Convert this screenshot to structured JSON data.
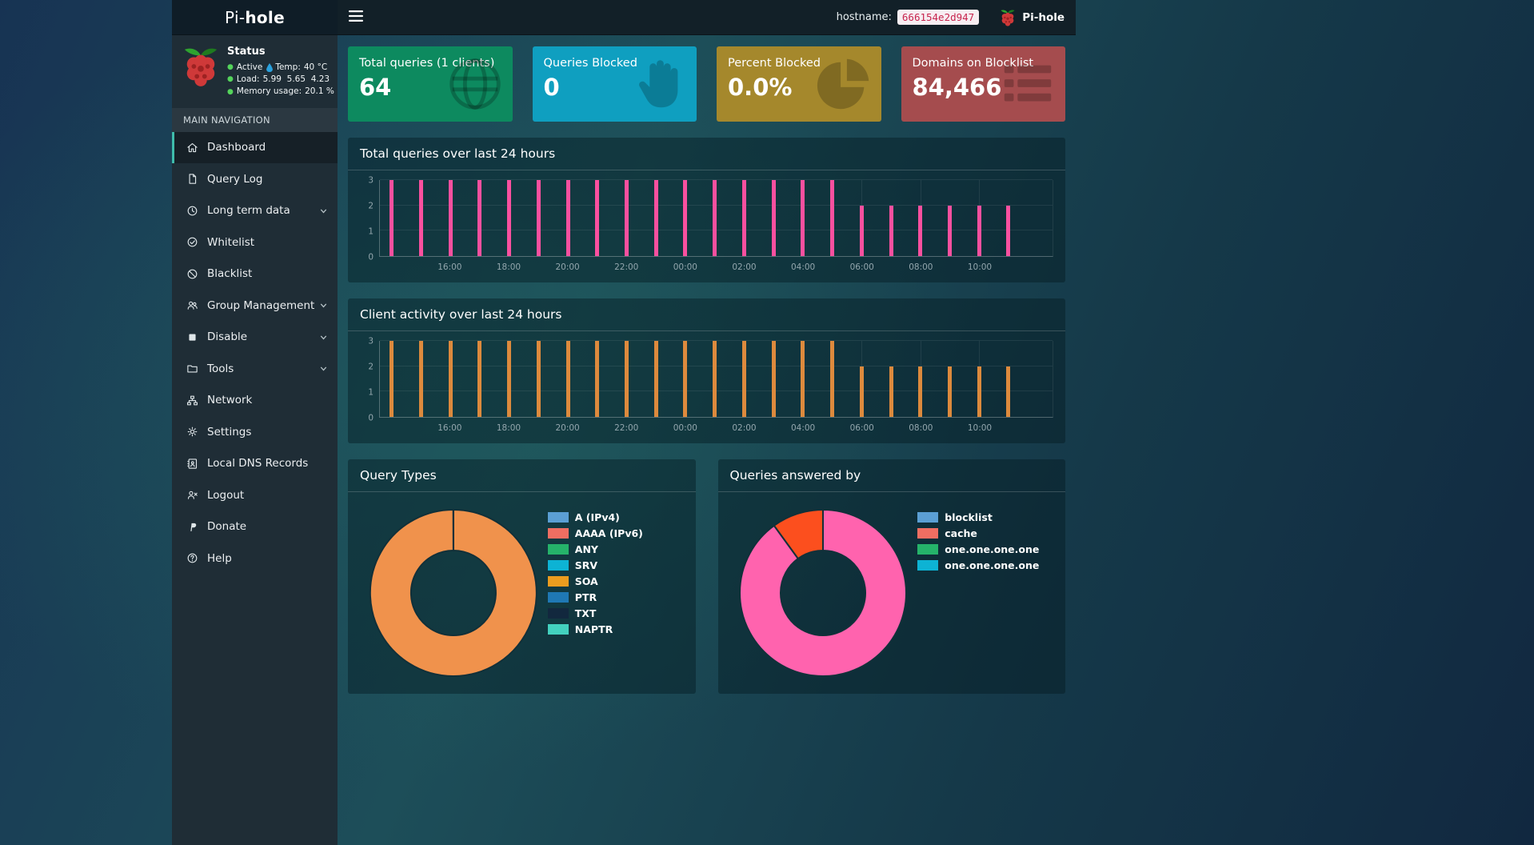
{
  "theme": {
    "accent": "#3fbcab",
    "status-ok": "#54d35b",
    "droplet": "#2aa1dd",
    "badge-bg": "#f7eef2",
    "badge-text": "#c7254e"
  },
  "navbar": {
    "brand": {
      "prefix": "Pi-",
      "bold": "hole"
    },
    "hostname_label": "hostname:",
    "hostname_value": "666154e2d947",
    "right_brand": "Pi-hole"
  },
  "sidebar": {
    "status": {
      "title": "Status",
      "active": "Active",
      "temp_label": "Temp:",
      "temp_value": "40 °C",
      "load_label": "Load:",
      "load_values": [
        "5.99",
        "5.65",
        "4.23"
      ],
      "memory_label": "Memory usage:",
      "memory_value": "20.1 %"
    },
    "nav_header": "MAIN NAVIGATION",
    "items": [
      {
        "id": "dashboard",
        "label": "Dashboard",
        "icon": "home",
        "active": true
      },
      {
        "id": "query-log",
        "label": "Query Log",
        "icon": "file"
      },
      {
        "id": "long-term-data",
        "label": "Long term data",
        "icon": "clock",
        "expandable": true
      },
      {
        "id": "whitelist",
        "label": "Whitelist",
        "icon": "check-circle"
      },
      {
        "id": "blacklist",
        "label": "Blacklist",
        "icon": "ban"
      },
      {
        "id": "group-management",
        "label": "Group Management",
        "icon": "users",
        "expandable": true
      },
      {
        "id": "disable",
        "label": "Disable",
        "icon": "stop",
        "expandable": true
      },
      {
        "id": "tools",
        "label": "Tools",
        "icon": "folder",
        "expandable": true
      },
      {
        "id": "network",
        "label": "Network",
        "icon": "network"
      },
      {
        "id": "settings",
        "label": "Settings",
        "icon": "gears"
      },
      {
        "id": "local-dns-records",
        "label": "Local DNS Records",
        "icon": "address-book"
      },
      {
        "id": "logout",
        "label": "Logout",
        "icon": "user-times"
      },
      {
        "id": "donate",
        "label": "Donate",
        "icon": "paypal"
      },
      {
        "id": "help",
        "label": "Help",
        "icon": "question"
      }
    ]
  },
  "summary_cards": [
    {
      "id": "total-queries",
      "title": "Total queries (1 clients)",
      "value": "64",
      "color": "#0d8a5f",
      "icon": "globe"
    },
    {
      "id": "queries-blocked",
      "title": "Queries Blocked",
      "value": "0",
      "color": "#0f9fc0",
      "icon": "hand"
    },
    {
      "id": "percent-blocked",
      "title": "Percent Blocked",
      "value": "0.0%",
      "color": "#a5882c",
      "icon": "pie-chart"
    },
    {
      "id": "domains-blocklist",
      "title": "Domains on Blocklist",
      "value": "84,466",
      "color": "#a54c4e",
      "icon": "list"
    }
  ],
  "chart_data": [
    {
      "type": "bar",
      "title": "Total queries over last 24 hours",
      "bar_color": "#f9509f",
      "ymax": 3,
      "yticks": [
        0,
        1,
        2,
        3
      ],
      "x": [
        "14:00",
        "15:00",
        "16:00",
        "17:00",
        "18:00",
        "19:00",
        "20:00",
        "21:00",
        "22:00",
        "23:00",
        "00:00",
        "01:00",
        "02:00",
        "03:00",
        "04:00",
        "05:00",
        "06:00",
        "07:00",
        "08:00",
        "09:00",
        "10:00",
        "11:00"
      ],
      "values": [
        3,
        3,
        3,
        3,
        3,
        3,
        3,
        3,
        3,
        3,
        3,
        3,
        3,
        3,
        3,
        3,
        2,
        2,
        2,
        2,
        2,
        2
      ],
      "tick_labels": [
        "16:00",
        "18:00",
        "20:00",
        "22:00",
        "00:00",
        "02:00",
        "04:00",
        "06:00",
        "08:00",
        "10:00"
      ]
    },
    {
      "type": "bar",
      "title": "Client activity over last 24 hours",
      "bar_color": "#dd8a3d",
      "ymax": 3,
      "yticks": [
        0,
        1,
        2,
        3
      ],
      "x": [
        "14:00",
        "15:00",
        "16:00",
        "17:00",
        "18:00",
        "19:00",
        "20:00",
        "21:00",
        "22:00",
        "23:00",
        "00:00",
        "01:00",
        "02:00",
        "03:00",
        "04:00",
        "05:00",
        "06:00",
        "07:00",
        "08:00",
        "09:00",
        "10:00",
        "11:00"
      ],
      "values": [
        3,
        3,
        3,
        3,
        3,
        3,
        3,
        3,
        3,
        3,
        3,
        3,
        3,
        3,
        3,
        3,
        2,
        2,
        2,
        2,
        2,
        2
      ],
      "tick_labels": [
        "16:00",
        "18:00",
        "20:00",
        "22:00",
        "00:00",
        "02:00",
        "04:00",
        "06:00",
        "08:00",
        "10:00"
      ]
    },
    {
      "type": "donut",
      "title": "Query Types",
      "slices": [
        {
          "value": 100,
          "color": "#f0924c"
        }
      ],
      "legend": [
        {
          "label": "A (IPv4)",
          "color": "#5b9fd4"
        },
        {
          "label": "AAAA (IPv6)",
          "color": "#ef6e62"
        },
        {
          "label": "ANY",
          "color": "#25b36a"
        },
        {
          "label": "SRV",
          "color": "#0db3d4"
        },
        {
          "label": "SOA",
          "color": "#eb9c1f"
        },
        {
          "label": "PTR",
          "color": "#1f78b4"
        },
        {
          "label": "TXT",
          "color": "#12283e"
        },
        {
          "label": "NAPTR",
          "color": "#43d1bf"
        }
      ]
    },
    {
      "type": "donut",
      "title": "Queries answered by",
      "slices": [
        {
          "value": 90,
          "color": "#ff63ae"
        },
        {
          "value": 10,
          "color": "#fc4f1e"
        }
      ],
      "legend": [
        {
          "label": "blocklist",
          "color": "#5b9fd4"
        },
        {
          "label": "cache",
          "color": "#ef6e62"
        },
        {
          "label": "one.one.one.one",
          "color": "#25b36a"
        },
        {
          "label": "one.one.one.one",
          "color": "#0db3d4"
        }
      ]
    }
  ]
}
